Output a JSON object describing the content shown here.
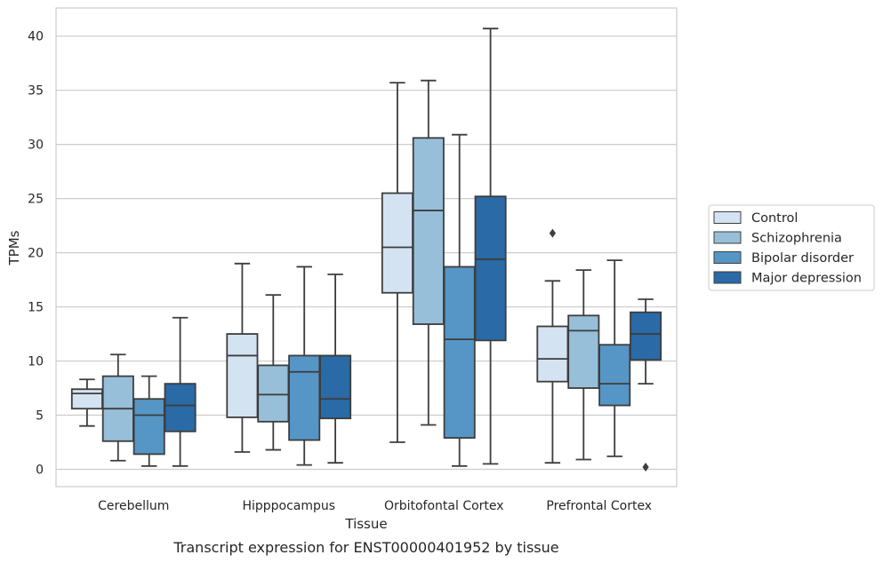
{
  "chart_data": {
    "type": "boxplot",
    "title": "",
    "caption": "Transcript expression for ENST00000401952 by tissue",
    "xlabel": "Tissue",
    "ylabel": "TPMs",
    "ylim": [
      -1.6,
      42.6
    ],
    "yticks": [
      0,
      5,
      10,
      15,
      20,
      25,
      30,
      35,
      40
    ],
    "ytick_labels": [
      "0",
      "5",
      "10",
      "15",
      "20",
      "25",
      "30",
      "35",
      "40"
    ],
    "grid": "horizontal",
    "legend_position": "right",
    "categories": [
      "Cerebellum",
      "Hipppocampus",
      "Orbitofontal Cortex",
      "Prefrontal Cortex"
    ],
    "series": [
      {
        "name": "Control",
        "color": "#d4e3f2",
        "boxes": [
          {
            "whislo": 4.0,
            "q1": 5.6,
            "med": 7.0,
            "q3": 7.4,
            "whishi": 8.3,
            "fliers": []
          },
          {
            "whislo": 1.6,
            "q1": 4.8,
            "med": 10.5,
            "q3": 12.5,
            "whishi": 19.0,
            "fliers": []
          },
          {
            "whislo": 2.5,
            "q1": 16.3,
            "med": 20.5,
            "q3": 25.5,
            "whishi": 35.7,
            "fliers": []
          },
          {
            "whislo": 0.6,
            "q1": 8.1,
            "med": 10.2,
            "q3": 13.2,
            "whishi": 17.4,
            "fliers": [
              21.8
            ]
          }
        ]
      },
      {
        "name": "Schizophrenia",
        "color": "#97bfd9",
        "boxes": [
          {
            "whislo": 0.8,
            "q1": 2.6,
            "med": 5.6,
            "q3": 8.6,
            "whishi": 10.6,
            "fliers": []
          },
          {
            "whislo": 1.8,
            "q1": 4.4,
            "med": 6.9,
            "q3": 9.6,
            "whishi": 16.1,
            "fliers": []
          },
          {
            "whislo": 4.1,
            "q1": 13.4,
            "med": 23.9,
            "q3": 30.6,
            "whishi": 35.9,
            "fliers": []
          },
          {
            "whislo": 0.9,
            "q1": 7.5,
            "med": 12.8,
            "q3": 14.2,
            "whishi": 18.4,
            "fliers": []
          }
        ]
      },
      {
        "name": "Bipolar disorder",
        "color": "#5696c6",
        "boxes": [
          {
            "whislo": 0.3,
            "q1": 1.4,
            "med": 5.0,
            "q3": 6.5,
            "whishi": 8.6,
            "fliers": []
          },
          {
            "whislo": 0.4,
            "q1": 2.7,
            "med": 9.0,
            "q3": 10.5,
            "whishi": 18.7,
            "fliers": []
          },
          {
            "whislo": 0.3,
            "q1": 2.9,
            "med": 12.0,
            "q3": 18.7,
            "whishi": 30.9,
            "fliers": []
          },
          {
            "whislo": 1.2,
            "q1": 5.9,
            "med": 7.9,
            "q3": 11.5,
            "whishi": 19.3,
            "fliers": []
          }
        ]
      },
      {
        "name": "Major depression",
        "color": "#2a6aa6",
        "boxes": [
          {
            "whislo": 0.3,
            "q1": 3.5,
            "med": 5.9,
            "q3": 7.9,
            "whishi": 14.0,
            "fliers": []
          },
          {
            "whislo": 0.6,
            "q1": 4.7,
            "med": 6.5,
            "q3": 10.5,
            "whishi": 18.0,
            "fliers": []
          },
          {
            "whislo": 0.5,
            "q1": 11.9,
            "med": 19.4,
            "q3": 25.2,
            "whishi": 40.7,
            "fliers": []
          },
          {
            "whislo": 7.9,
            "q1": 10.1,
            "med": 12.5,
            "q3": 14.5,
            "whishi": 15.7,
            "fliers": [
              0.2
            ]
          }
        ]
      }
    ]
  }
}
